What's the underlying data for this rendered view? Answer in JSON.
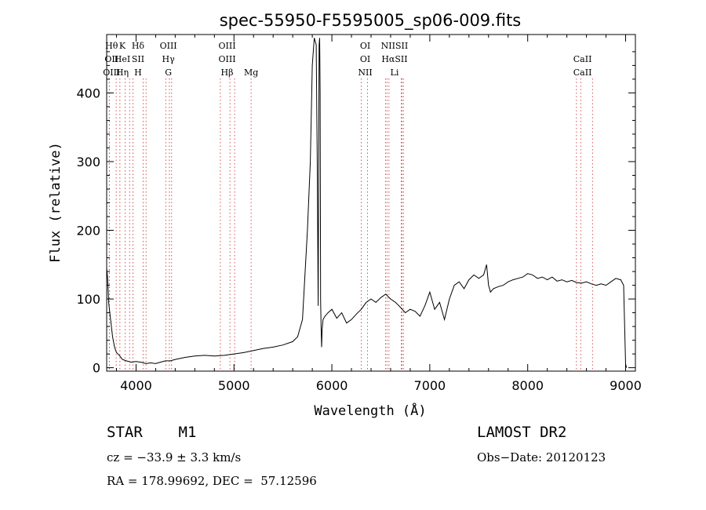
{
  "chart_data": {
    "type": "line",
    "title": "spec-55950-F5595005_sp06-009.fits",
    "xlabel": "Wavelength (Å)",
    "ylabel": "Flux (relative)",
    "xlim": [
      3700,
      9100
    ],
    "ylim": [
      -5,
      485
    ],
    "xticks": [
      4000,
      5000,
      6000,
      7000,
      8000,
      9000
    ],
    "yticks": [
      0,
      100,
      200,
      300,
      400
    ],
    "grid": false,
    "series": [
      {
        "x": [
          3700,
          3710,
          3720,
          3740,
          3760,
          3780,
          3800,
          3830,
          3860,
          3900,
          3950,
          4000,
          4050,
          4100,
          4150,
          4200,
          4250,
          4300,
          4350,
          4400,
          4500,
          4600,
          4700,
          4800,
          4900,
          5000,
          5100,
          5200,
          5300,
          5400,
          5500,
          5600,
          5650,
          5700,
          5750,
          5780,
          5800,
          5820,
          5840,
          5850,
          5860,
          5870,
          5875,
          5880,
          5885,
          5890,
          5895,
          5900,
          5910,
          5930,
          5960,
          6000,
          6050,
          6100,
          6150,
          6200,
          6250,
          6300,
          6350,
          6400,
          6450,
          6500,
          6550,
          6600,
          6650,
          6700,
          6750,
          6800,
          6850,
          6900,
          6950,
          7000,
          7050,
          7100,
          7150,
          7200,
          7250,
          7300,
          7350,
          7400,
          7450,
          7500,
          7550,
          7580,
          7600,
          7620,
          7650,
          7700,
          7750,
          7800,
          7850,
          7900,
          7950,
          8000,
          8050,
          8100,
          8150,
          8200,
          8250,
          8300,
          8350,
          8400,
          8450,
          8500,
          8550,
          8600,
          8650,
          8700,
          8750,
          8800,
          8850,
          8900,
          8950,
          8980,
          8990,
          9000,
          9010
        ],
        "y": [
          145,
          130,
          95,
          70,
          45,
          30,
          22,
          18,
          12,
          10,
          8,
          9,
          8,
          6,
          7,
          6,
          8,
          10,
          10,
          12,
          15,
          17,
          18,
          17,
          18,
          20,
          22,
          25,
          28,
          30,
          33,
          38,
          45,
          70,
          200,
          300,
          440,
          480,
          470,
          300,
          90,
          470,
          480,
          400,
          100,
          60,
          30,
          55,
          70,
          75,
          80,
          85,
          72,
          80,
          65,
          70,
          78,
          85,
          95,
          100,
          95,
          102,
          107,
          100,
          95,
          88,
          80,
          85,
          82,
          75,
          90,
          110,
          85,
          95,
          70,
          100,
          120,
          125,
          115,
          128,
          135,
          130,
          135,
          150,
          120,
          110,
          115,
          118,
          120,
          125,
          128,
          130,
          132,
          137,
          135,
          130,
          132,
          128,
          132,
          126,
          128,
          125,
          127,
          124,
          123,
          125,
          122,
          120,
          122,
          120,
          125,
          130,
          128,
          120,
          60,
          5,
          0
        ]
      }
    ],
    "line_groups": [
      {
        "labels": [
          "Hθ",
          "OII",
          "OIII"
        ],
        "xs": [
          3797,
          3727,
          3727
        ],
        "x": 3750
      },
      {
        "labels": [
          "K",
          "HeI",
          "Hη"
        ],
        "xs": [
          3934,
          3889,
          3835
        ],
        "x": 3860
      },
      {
        "labels": [
          "Hδ",
          "SII",
          "H"
        ],
        "xs": [
          4102,
          4072,
          3968
        ],
        "x": 4020
      },
      {
        "labels": [
          "OIII",
          "Hγ",
          "G"
        ],
        "xs": [
          4363,
          4340,
          4304
        ],
        "x": 4330
      },
      {
        "labels": [
          "OIII",
          "OIII",
          "Hβ"
        ],
        "xs": [
          5007,
          4959,
          4861
        ],
        "x": 4930
      },
      {
        "labels": [
          "",
          "",
          "Mg"
        ],
        "xs": [
          5175
        ],
        "x": 5175
      },
      {
        "labels": [
          "OI",
          "OI",
          "NII"
        ],
        "xs": [
          6364,
          6300,
          6548
        ],
        "x": 6340
      },
      {
        "labels": [
          "NIISII",
          "HαSII",
          "Li"
        ],
        "xs": [
          6583,
          6563,
          6717,
          6731,
          6708
        ],
        "x": 6640
      },
      {
        "labels": [
          "",
          "CaII",
          "CaII"
        ],
        "xs": [
          8498,
          8542,
          8662
        ],
        "x": 8560
      }
    ]
  },
  "footer": {
    "object": "STAR    M1",
    "survey": "LAMOST DR2",
    "cz": "cz = −33.9 ± 3.3 km/s",
    "obs_date": "Obs−Date: 20120123",
    "coords": "RA = 178.99692, DEC =  57.12596"
  }
}
